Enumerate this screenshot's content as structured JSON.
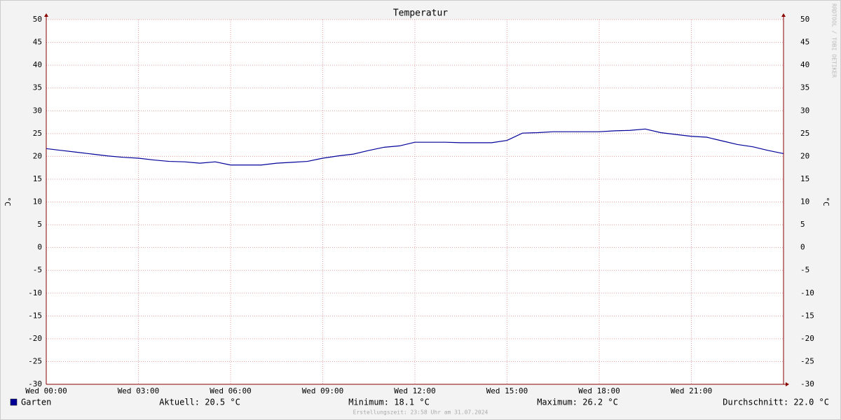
{
  "chart_data": {
    "type": "line",
    "title": "Temperatur",
    "y_label": "°C",
    "watermark": "RRDTOOL / TOBI OETIKER",
    "footer": "Erstellungszeit: 23:58 Uhr am 31.07.2024",
    "stats": [
      "Aktuell: 20.5 °C",
      "Minimum: 18.1 °C",
      "Maximum: 26.2 °C",
      "Durchschnitt: 22.0 °C"
    ],
    "x": [
      0,
      0.5,
      1,
      1.5,
      2,
      2.5,
      3,
      3.5,
      4,
      4.5,
      5,
      5.5,
      6,
      6.5,
      7,
      7.5,
      8,
      8.5,
      9,
      9.5,
      10,
      10.5,
      11,
      11.5,
      12,
      12.5,
      13,
      13.5,
      14,
      14.5,
      15,
      15.5,
      16,
      16.5,
      17,
      17.5,
      18,
      18.5,
      19,
      19.5,
      20,
      20.5,
      21,
      21.5,
      22,
      22.5,
      23,
      23.5,
      24
    ],
    "series": [
      {
        "name": "Garten",
        "color": "#000099",
        "values": [
          21.7,
          21.3,
          20.9,
          20.5,
          20.1,
          19.8,
          19.6,
          19.2,
          18.9,
          18.8,
          18.5,
          18.8,
          18.1,
          18.1,
          18.1,
          18.5,
          18.7,
          18.9,
          19.6,
          20.1,
          20.5,
          21.3,
          22.0,
          22.3,
          23.1,
          23.1,
          23.1,
          23.0,
          23.0,
          23.0,
          23.5,
          25.1,
          25.2,
          25.4,
          25.4,
          25.4,
          25.4,
          25.6,
          25.7,
          26.0,
          25.2,
          24.8,
          24.4,
          24.2,
          23.4,
          22.6,
          22.1,
          21.3,
          20.6
        ]
      }
    ],
    "xlim": [
      0,
      24
    ],
    "xticks": [
      {
        "value": 0,
        "label": "Wed 00:00"
      },
      {
        "value": 3,
        "label": "Wed 03:00"
      },
      {
        "value": 6,
        "label": "Wed 06:00"
      },
      {
        "value": 9,
        "label": "Wed 09:00"
      },
      {
        "value": 12,
        "label": "Wed 12:00"
      },
      {
        "value": 15,
        "label": "Wed 15:00"
      },
      {
        "value": 18,
        "label": "Wed 18:00"
      },
      {
        "value": 21,
        "label": "Wed 21:00"
      }
    ],
    "ylim": [
      -30,
      50
    ],
    "yticks": [
      -30,
      -25,
      -20,
      -15,
      -10,
      -5,
      0,
      5,
      10,
      15,
      20,
      25,
      30,
      35,
      40,
      45,
      50
    ],
    "grid": true,
    "right_axis": true
  }
}
